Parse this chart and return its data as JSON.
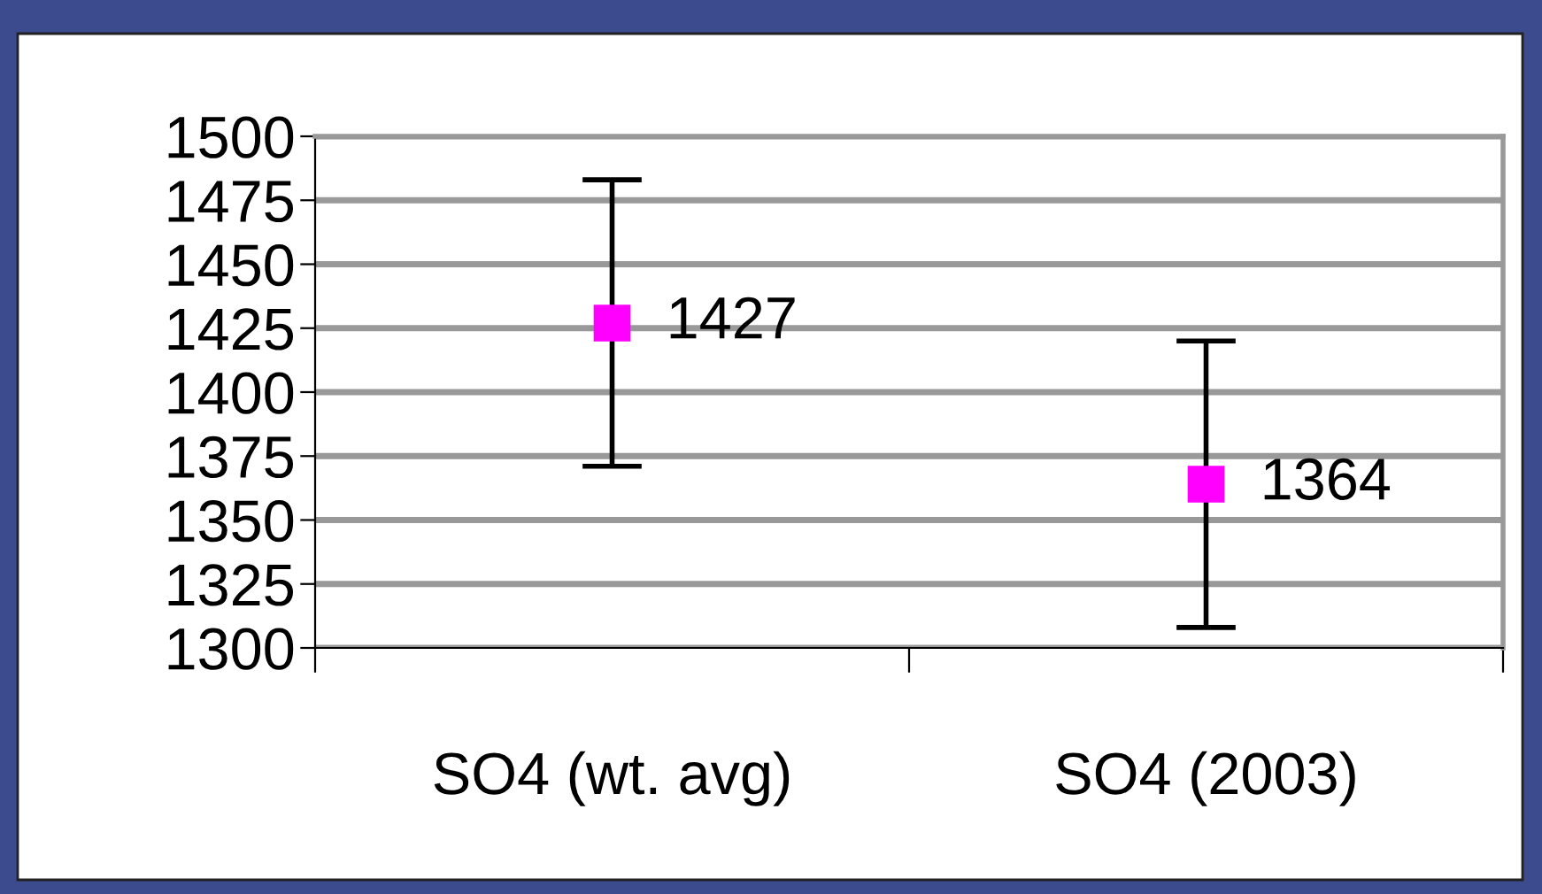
{
  "chart_data": {
    "type": "scatter",
    "categories": [
      "SO4 (wt. avg)",
      "SO4 (2003)"
    ],
    "series": [
      {
        "color": "#ff00ff",
        "values": [
          1427,
          1364
        ],
        "errors": [
          56,
          56
        ]
      }
    ],
    "ylim": [
      1300,
      1500
    ],
    "yticks": [
      1300,
      1325,
      1350,
      1375,
      1400,
      1425,
      1450,
      1475,
      1500
    ],
    "grid": "y",
    "marker": "square",
    "data_labels": true,
    "legend": false
  }
}
